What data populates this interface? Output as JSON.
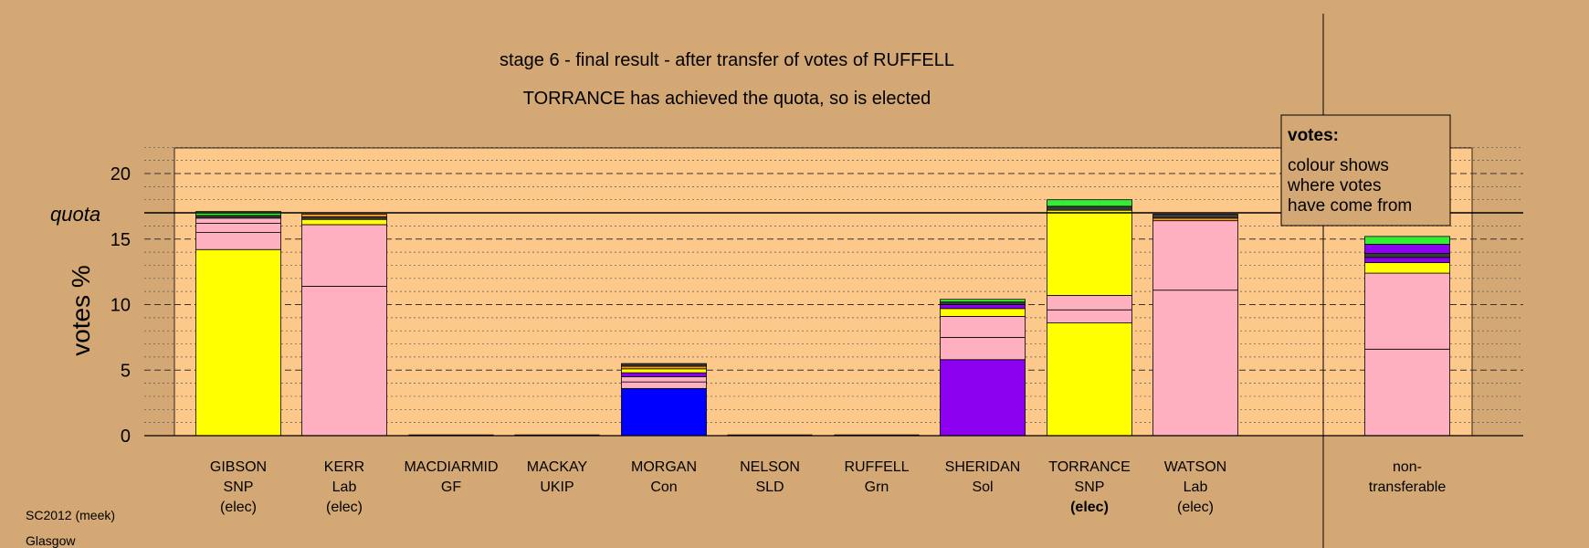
{
  "chart_data": {
    "type": "bar",
    "stacked": true,
    "title": "stage 6 - final result - after transfer of votes of RUFFELL",
    "subtitle": "TORRANCE has achieved the quota, so is elected",
    "ylabel": "votes %",
    "ylim": [
      0,
      22
    ],
    "yticks": [
      0,
      5,
      10,
      15,
      20
    ],
    "quota": 17.0,
    "quota_label": "quota",
    "legend_position": "top-right",
    "legend": {
      "title": "votes:",
      "lines": [
        "colour shows",
        "where votes",
        "have come from"
      ]
    },
    "colors": {
      "background": "#d4a874",
      "plot_background": "#fcc98b",
      "SNP": "#ffff00",
      "Lab": "#ffb0c0",
      "Con": "#0000ff",
      "Sol": "#8b00ef",
      "Grn": "#33ee33",
      "other": "#3a3a3a",
      "orange": "#ff9900"
    },
    "categories": [
      {
        "name": "GIBSON",
        "party": "SNP",
        "status": "(elec)",
        "bold": false,
        "segments": [
          {
            "value": 14.2,
            "color": "#ffff00"
          },
          {
            "value": 1.3,
            "color": "#ffb0c0"
          },
          {
            "value": 0.7,
            "color": "#ffb0c0"
          },
          {
            "value": 0.4,
            "color": "#ffb0c0"
          },
          {
            "value": 0.2,
            "color": "#3a3a3a"
          },
          {
            "value": 0.3,
            "color": "#33ee33"
          }
        ]
      },
      {
        "name": "KERR",
        "party": "Lab",
        "status": "(elec)",
        "bold": false,
        "segments": [
          {
            "value": 11.4,
            "color": "#ffb0c0"
          },
          {
            "value": 4.7,
            "color": "#ffb0c0"
          },
          {
            "value": 0.4,
            "color": "#ffff00"
          },
          {
            "value": 0.2,
            "color": "#3a3a3a"
          },
          {
            "value": 0.2,
            "color": "#ff9900"
          }
        ]
      },
      {
        "name": "MACDIARMID",
        "party": "GF",
        "status": "",
        "bold": false,
        "segments": []
      },
      {
        "name": "MACKAY",
        "party": "UKIP",
        "status": "",
        "bold": false,
        "segments": []
      },
      {
        "name": "MORGAN",
        "party": "Con",
        "status": "",
        "bold": false,
        "segments": [
          {
            "value": 3.6,
            "color": "#0000ff"
          },
          {
            "value": 0.5,
            "color": "#ffb0c0"
          },
          {
            "value": 0.4,
            "color": "#ffb0c0"
          },
          {
            "value": 0.3,
            "color": "#8b00ef"
          },
          {
            "value": 0.3,
            "color": "#ffff00"
          },
          {
            "value": 0.2,
            "color": "#ff9900"
          },
          {
            "value": 0.2,
            "color": "#3a3a3a"
          }
        ]
      },
      {
        "name": "NELSON",
        "party": "SLD",
        "status": "",
        "bold": false,
        "segments": []
      },
      {
        "name": "RUFFELL",
        "party": "Grn",
        "status": "",
        "bold": false,
        "segments": []
      },
      {
        "name": "SHERIDAN",
        "party": "Sol",
        "status": "",
        "bold": false,
        "segments": [
          {
            "value": 5.8,
            "color": "#8b00ef"
          },
          {
            "value": 1.7,
            "color": "#ffb0c0"
          },
          {
            "value": 1.6,
            "color": "#ffb0c0"
          },
          {
            "value": 0.6,
            "color": "#ffff00"
          },
          {
            "value": 0.3,
            "color": "#8b00ef"
          },
          {
            "value": 0.2,
            "color": "#3a3a3a"
          },
          {
            "value": 0.2,
            "color": "#33ee33"
          }
        ]
      },
      {
        "name": "TORRANCE",
        "party": "SNP",
        "status": "(elec)",
        "bold": true,
        "segments": [
          {
            "value": 8.6,
            "color": "#ffff00"
          },
          {
            "value": 1.0,
            "color": "#ffb0c0"
          },
          {
            "value": 1.1,
            "color": "#ffb0c0"
          },
          {
            "value": 6.5,
            "color": "#ffff00"
          },
          {
            "value": 0.3,
            "color": "#3a3a3a"
          },
          {
            "value": 0.5,
            "color": "#33ee33"
          }
        ]
      },
      {
        "name": "WATSON",
        "party": "Lab",
        "status": "(elec)",
        "bold": false,
        "segments": [
          {
            "value": 11.1,
            "color": "#ffb0c0"
          },
          {
            "value": 5.3,
            "color": "#ffb0c0"
          },
          {
            "value": 0.2,
            "color": "#ff9900"
          },
          {
            "value": 0.3,
            "color": "#3a3a3a"
          }
        ]
      },
      {
        "name": "non-",
        "party": "transferable",
        "status": "",
        "bold": false,
        "separate": true,
        "segments": [
          {
            "value": 6.6,
            "color": "#ffb0c0"
          },
          {
            "value": 5.8,
            "color": "#ffb0c0"
          },
          {
            "value": 0.8,
            "color": "#ffff00"
          },
          {
            "value": 0.4,
            "color": "#8b00ef"
          },
          {
            "value": 0.3,
            "color": "#3a3a3a"
          },
          {
            "value": 0.7,
            "color": "#8b00ef"
          },
          {
            "value": 0.6,
            "color": "#33ee33"
          }
        ]
      }
    ]
  },
  "footer": {
    "line1": "SC2012 (meek)",
    "line2": "Glasgow"
  }
}
